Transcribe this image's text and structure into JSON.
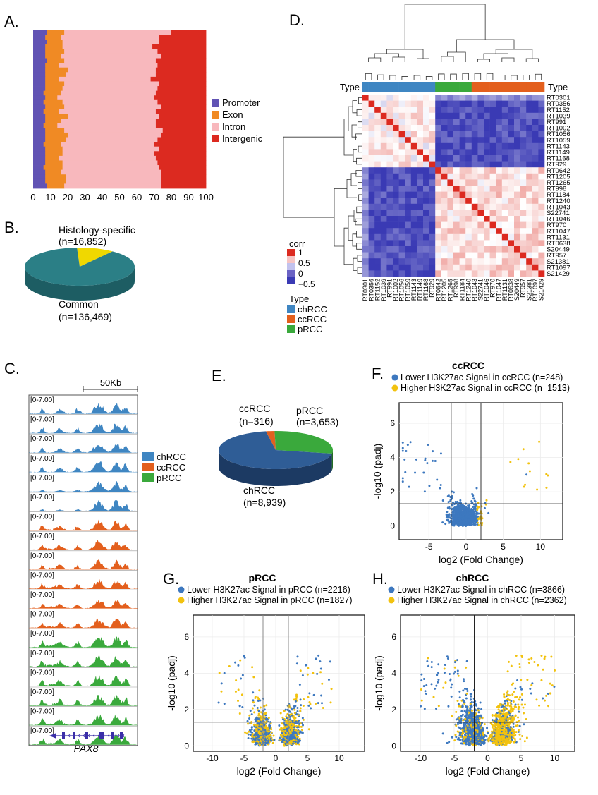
{
  "panels": {
    "A": "A.",
    "B": "B.",
    "C": "C.",
    "D": "D.",
    "E": "E.",
    "F": "F.",
    "G": "G.",
    "H": "H."
  },
  "colors": {
    "promoter": "#6153b4",
    "exon": "#f08a24",
    "intron": "#f8b8bd",
    "intergenic": "#dc2a20",
    "chRCC": "#3f86c2",
    "ccRCC": "#e35f1d",
    "pRCC": "#3aa93c",
    "pie_common": "#2b7f86",
    "pie_specific": "#f0d800",
    "pie_ch": "#2f5d96",
    "pie_cc": "#e06020",
    "pie_p": "#3aa93c",
    "lower": "#3d78bf",
    "higher": "#f2c20f",
    "hm_hi": "#dc2a20",
    "hm_lo": "#3a3ab4"
  },
  "chart_data": [
    {
      "id": "A",
      "type": "bar",
      "orientation": "horizontal-stacked",
      "xticks": [
        "0",
        "10",
        "20",
        "30",
        "40",
        "50",
        "60",
        "70",
        "80",
        "90",
        "100"
      ],
      "xlim": [
        0,
        100
      ],
      "series_names": [
        "Promoter",
        "Exon",
        "Intron",
        "Intergenic"
      ],
      "rows": [
        [
          8,
          10,
          62,
          20
        ],
        [
          7,
          9,
          57,
          27
        ],
        [
          8,
          9,
          56,
          27
        ],
        [
          7,
          10,
          52,
          31
        ],
        [
          7,
          11,
          54,
          28
        ],
        [
          7,
          9,
          58,
          26
        ],
        [
          8,
          10,
          53,
          29
        ],
        [
          7,
          8,
          57,
          28
        ],
        [
          7,
          13,
          51,
          29
        ],
        [
          7,
          12,
          52,
          29
        ],
        [
          7,
          8,
          53,
          32
        ],
        [
          7,
          11,
          55,
          27
        ],
        [
          7,
          10,
          55,
          28
        ],
        [
          6,
          10,
          55,
          29
        ],
        [
          7,
          7,
          56,
          30
        ],
        [
          6,
          11,
          55,
          28
        ],
        [
          7,
          11,
          56,
          26
        ],
        [
          6,
          9,
          56,
          29
        ],
        [
          7,
          13,
          53,
          27
        ],
        [
          7,
          9,
          55,
          29
        ],
        [
          6,
          8,
          57,
          29
        ],
        [
          7,
          11,
          57,
          25
        ],
        [
          7,
          13,
          54,
          26
        ],
        [
          7,
          12,
          53,
          28
        ],
        [
          6,
          10,
          54,
          30
        ],
        [
          7,
          10,
          56,
          27
        ],
        [
          7,
          10,
          53,
          30
        ],
        [
          7,
          8,
          56,
          29
        ],
        [
          7,
          10,
          55,
          28
        ],
        [
          6,
          11,
          56,
          27
        ],
        [
          7,
          9,
          58,
          26
        ],
        [
          7,
          12,
          55,
          26
        ],
        [
          7,
          12,
          55,
          26
        ],
        [
          8,
          10,
          56,
          26
        ]
      ]
    },
    {
      "id": "B",
      "type": "pie",
      "labels": [
        "Histology-specific",
        "Common"
      ],
      "label_lines": [
        [
          "Histology-specific",
          "(n=16,852)"
        ],
        [
          "Common",
          "(n=136,469)"
        ]
      ],
      "values": [
        16852,
        136469
      ]
    },
    {
      "id": "C",
      "type": "area",
      "scale_label": "50Kb",
      "gene": "PAX8",
      "track_label": "[0-7.00]",
      "track_types": [
        "chRCC",
        "chRCC",
        "chRCC",
        "chRCC",
        "chRCC",
        "chRCC",
        "ccRCC",
        "ccRCC",
        "ccRCC",
        "ccRCC",
        "ccRCC",
        "ccRCC",
        "pRCC",
        "pRCC",
        "pRCC",
        "pRCC",
        "pRCC",
        "pRCC"
      ],
      "legend": [
        "chRCC",
        "ccRCC",
        "pRCC"
      ]
    },
    {
      "id": "D",
      "type": "heatmap",
      "type_label": "Type",
      "rows": [
        "RT0301",
        "RT0356",
        "RT1152",
        "RT1039",
        "RT991",
        "RT1002",
        "RT1056",
        "RT1059",
        "RT1143",
        "RT1149",
        "RT1168",
        "RT929",
        "RT0642",
        "RT1205",
        "RT1265",
        "RT998",
        "RT1184",
        "RT1240",
        "RT1043",
        "S22741",
        "RT1046",
        "RT970",
        "RT1047",
        "RT1131",
        "RT0638",
        "S20449",
        "RT957",
        "S21381",
        "RT1097",
        "S21429"
      ],
      "row_groups": [
        "chRCC",
        "chRCC",
        "chRCC",
        "chRCC",
        "chRCC",
        "chRCC",
        "chRCC",
        "chRCC",
        "chRCC",
        "chRCC",
        "chRCC",
        "chRCC",
        "pRCC",
        "pRCC",
        "pRCC",
        "pRCC",
        "pRCC",
        "pRCC",
        "ccRCC",
        "ccRCC",
        "ccRCC",
        "ccRCC",
        "ccRCC",
        "ccRCC",
        "ccRCC",
        "ccRCC",
        "ccRCC",
        "ccRCC",
        "ccRCC",
        "ccRCC"
      ],
      "legend_title": "corr",
      "legend_ticks": [
        "1",
        "0.5",
        "0",
        "−0.5"
      ],
      "type_legend": [
        "chRCC",
        "ccRCC",
        "pRCC"
      ]
    },
    {
      "id": "E",
      "type": "pie",
      "labels": [
        "chRCC",
        "ccRCC",
        "pRCC"
      ],
      "label_lines": [
        [
          "chRCC",
          "(n=8,939)"
        ],
        [
          "ccRCC",
          "(n=316)"
        ],
        [
          "pRCC",
          "(n=3,653)"
        ]
      ],
      "values": [
        8939,
        316,
        3653
      ]
    },
    {
      "id": "F",
      "type": "scatter",
      "title": "ccRCC",
      "legend": [
        "Lower H3K27ac Signal in ccRCC (n=248)",
        "Higher H3K27ac Signal in ccRCC (n=1513)"
      ],
      "xlabel": "log2 (Fold Change)",
      "ylabel": "-log10 (padj)",
      "xlim": [
        -9,
        13
      ],
      "ylim": [
        -0.8,
        7.2
      ],
      "xticks": [
        -5,
        0,
        5,
        10
      ],
      "yticks": [
        0,
        2,
        4,
        6
      ],
      "vlines": [
        -2,
        2
      ],
      "hline": 1.3
    },
    {
      "id": "G",
      "type": "scatter",
      "title": "pRCC",
      "legend": [
        "Lower H3K27ac Signal in pRCC (n=2216)",
        "Higher H3K27ac Signal in pRCC (n=1827)"
      ],
      "xlabel": "log2 (Fold Change)",
      "ylabel": "-log10 (padj)",
      "xlim": [
        -13,
        14
      ],
      "ylim": [
        -0.3,
        7.2
      ],
      "xticks": [
        -10,
        -5,
        0,
        5,
        10
      ],
      "yticks": [
        0,
        2,
        4,
        6
      ],
      "vlines": [
        -2,
        2
      ],
      "hline": 1.3
    },
    {
      "id": "H",
      "type": "scatter",
      "title": "chRCC",
      "legend": [
        "Lower H3K27ac Signal in chRCC (n=3866)",
        "Higher H3K27ac Signal in chRCC (n=2362)"
      ],
      "xlabel": "log2 (Fold Change)",
      "ylabel": "-log10 (padj)",
      "xlim": [
        -13,
        13
      ],
      "ylim": [
        -0.3,
        7.2
      ],
      "xticks": [
        -10,
        -5,
        0,
        5,
        10
      ],
      "yticks": [
        0,
        2,
        4,
        6
      ],
      "vlines": [
        -2,
        2
      ],
      "hline": 1.3
    }
  ]
}
